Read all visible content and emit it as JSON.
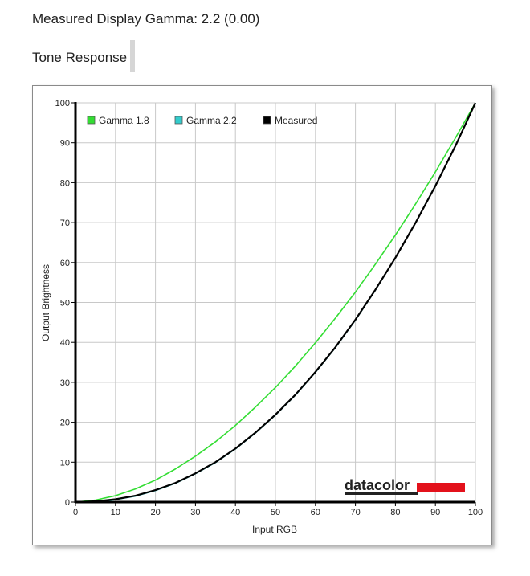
{
  "header": {
    "title": "Measured Display Gamma: 2.2 (0.00)",
    "section_label": "Tone Response"
  },
  "logo": {
    "text": "datacolor",
    "bar_color": "#e3111b"
  },
  "chart_data": {
    "type": "line",
    "xlabel": "Input RGB",
    "ylabel": "Output Brightness",
    "xlim": [
      0,
      100
    ],
    "ylim": [
      0,
      100
    ],
    "x_ticks": [
      0,
      10,
      20,
      30,
      40,
      50,
      60,
      70,
      80,
      90,
      100
    ],
    "y_ticks": [
      0,
      10,
      20,
      30,
      40,
      50,
      60,
      70,
      80,
      90,
      100
    ],
    "grid": true,
    "legend_position": "top-left",
    "series": [
      {
        "name": "Gamma 1.8",
        "color": "#33dd33",
        "x": [
          0,
          5,
          10,
          15,
          20,
          25,
          30,
          35,
          40,
          45,
          50,
          55,
          60,
          65,
          70,
          75,
          80,
          85,
          90,
          95,
          100
        ],
        "values": [
          0,
          0.5,
          1.6,
          3.3,
          5.5,
          8.3,
          11.5,
          15.1,
          19.2,
          23.8,
          28.7,
          34.1,
          39.9,
          46.1,
          52.6,
          59.6,
          66.9,
          74.6,
          82.7,
          91.2,
          100
        ]
      },
      {
        "name": "Gamma 2.2",
        "color": "#33cccc",
        "x": [
          0,
          5,
          10,
          15,
          20,
          25,
          30,
          35,
          40,
          45,
          50,
          55,
          60,
          65,
          70,
          75,
          80,
          85,
          90,
          95,
          100
        ],
        "values": [
          0,
          0.1,
          0.6,
          1.5,
          2.9,
          4.7,
          7.1,
          9.9,
          13.3,
          17.3,
          21.8,
          26.8,
          32.5,
          38.7,
          45.6,
          53.1,
          61.2,
          69.9,
          79.3,
          89.3,
          100
        ]
      },
      {
        "name": "Measured",
        "color": "#000000",
        "x": [
          0,
          5,
          10,
          15,
          20,
          25,
          30,
          35,
          40,
          45,
          50,
          55,
          60,
          65,
          70,
          75,
          80,
          85,
          90,
          95,
          100
        ],
        "values": [
          0,
          0.2,
          0.7,
          1.6,
          3.0,
          4.8,
          7.2,
          10.0,
          13.4,
          17.4,
          21.9,
          26.9,
          32.6,
          38.8,
          45.7,
          53.2,
          61.2,
          69.9,
          79.2,
          89.2,
          100
        ]
      }
    ]
  }
}
